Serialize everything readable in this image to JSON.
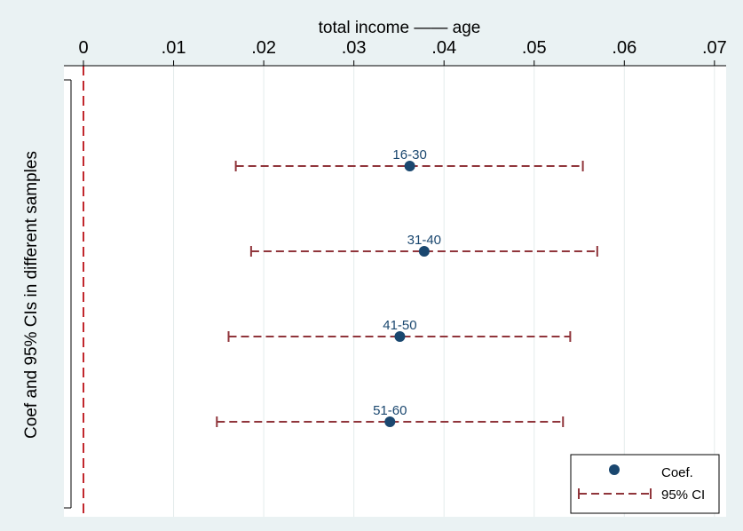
{
  "chart_data": {
    "type": "scatter",
    "title": "total income —— age",
    "ylabel": "Coef and 95% CIs in different samples",
    "xlabel": "",
    "xlim": [
      0,
      0.07
    ],
    "x_ticks": [
      {
        "value": 0,
        "label": "0"
      },
      {
        "value": 0.01,
        "label": ".01"
      },
      {
        "value": 0.02,
        "label": ".02"
      },
      {
        "value": 0.03,
        "label": ".03"
      },
      {
        "value": 0.04,
        "label": ".04"
      },
      {
        "value": 0.05,
        "label": ".05"
      },
      {
        "value": 0.06,
        "label": ".06"
      },
      {
        "value": 0.07,
        "label": ".07"
      }
    ],
    "reference_line": {
      "x": 0
    },
    "grid": true,
    "legend_position": "bottom-right",
    "legend": [
      {
        "label": "Coef."
      },
      {
        "label": "95% CI"
      }
    ],
    "points": [
      {
        "label": "16-30",
        "coef": 0.0362,
        "ci_low": 0.0169,
        "ci_high": 0.0554
      },
      {
        "label": "31-40",
        "coef": 0.0378,
        "ci_low": 0.0186,
        "ci_high": 0.057
      },
      {
        "label": "41-50",
        "coef": 0.0351,
        "ci_low": 0.0161,
        "ci_high": 0.054
      },
      {
        "label": "51-60",
        "coef": 0.034,
        "ci_low": 0.0148,
        "ci_high": 0.0532
      }
    ],
    "colors": {
      "background": "#eaf2f3",
      "plot_region": "#ffffff",
      "grid": "#e4ecec",
      "marker": "#1a476f",
      "ci": "#90353b",
      "reference": "#c1272d"
    }
  }
}
